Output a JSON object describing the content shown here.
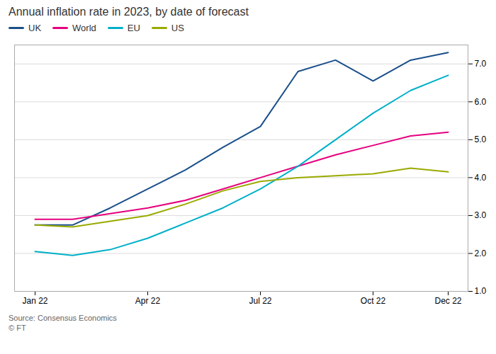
{
  "chart_data": {
    "type": "line",
    "title": "Annual inflation rate in 2023, by date of forecast",
    "source": "Source: Consensus Economics",
    "copyright": "© FT",
    "categories": [
      "Jan 22",
      null,
      null,
      "Apr 22",
      null,
      null,
      "Jul 22",
      null,
      null,
      "Oct 22",
      null,
      "Dec 22"
    ],
    "series": [
      {
        "name": "UK",
        "color": "#1a4f8a",
        "values": [
          2.75,
          2.75,
          3.2,
          3.7,
          4.2,
          4.8,
          5.35,
          6.8,
          7.1,
          6.55,
          7.1,
          7.3
        ]
      },
      {
        "name": "World",
        "color": "#e6007e",
        "values": [
          2.9,
          2.9,
          3.05,
          3.2,
          3.4,
          3.7,
          4.0,
          4.3,
          4.6,
          4.85,
          5.1,
          5.2
        ]
      },
      {
        "name": "EU",
        "color": "#00b0c8",
        "values": [
          2.05,
          1.95,
          2.1,
          2.4,
          2.8,
          3.2,
          3.7,
          4.3,
          5.0,
          5.7,
          6.3,
          6.7
        ]
      },
      {
        "name": "US",
        "color": "#9aaa00",
        "values": [
          2.75,
          2.7,
          2.85,
          3.0,
          3.3,
          3.65,
          3.9,
          4.0,
          4.05,
          4.1,
          4.25,
          4.15
        ]
      }
    ],
    "ylim": [
      1,
      7.5
    ],
    "yticks": [
      1,
      2,
      3,
      4,
      5,
      6,
      7
    ],
    "grid": true,
    "legend": "top-left"
  }
}
